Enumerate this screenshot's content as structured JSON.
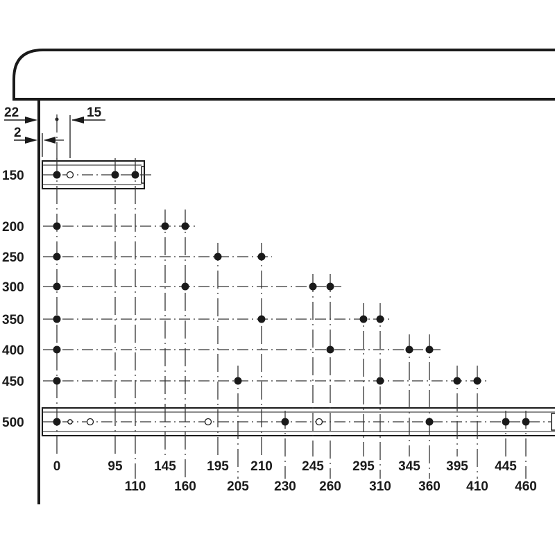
{
  "dimensions": {
    "top_offset": "22",
    "side_offset": "2",
    "hole_offset": "15"
  },
  "row_labels": [
    "150",
    "200",
    "250",
    "300",
    "350",
    "400",
    "450",
    "500"
  ],
  "column_labels_upper": [
    "0",
    "95",
    "145",
    "195",
    "210",
    "245",
    "295",
    "345",
    "395",
    "445"
  ],
  "column_labels_lower": [
    "110",
    "160",
    "205",
    "230",
    "260",
    "310",
    "360",
    "410",
    "460"
  ],
  "rows": [
    {
      "height": 150,
      "filled": [
        0,
        95,
        110
      ],
      "open": [
        15
      ]
    },
    {
      "height": 200,
      "filled": [
        0,
        145,
        160
      ],
      "open": []
    },
    {
      "height": 250,
      "filled": [
        0,
        195,
        210
      ],
      "open": []
    },
    {
      "height": 300,
      "filled": [
        0,
        160,
        245,
        260
      ],
      "open": []
    },
    {
      "height": 350,
      "filled": [
        0,
        210,
        295,
        310
      ],
      "open": []
    },
    {
      "height": 400,
      "filled": [
        0,
        260,
        345,
        360
      ],
      "open": []
    },
    {
      "height": 450,
      "filled": [
        0,
        205,
        310,
        395,
        410
      ],
      "open": []
    },
    {
      "height": 500,
      "filled": [
        0,
        230,
        360,
        445,
        460
      ],
      "open": [
        "slot-1",
        "slot-2",
        "slot-3",
        "slot-4"
      ]
    }
  ],
  "colors": {
    "ink": "#1a1a1a"
  }
}
